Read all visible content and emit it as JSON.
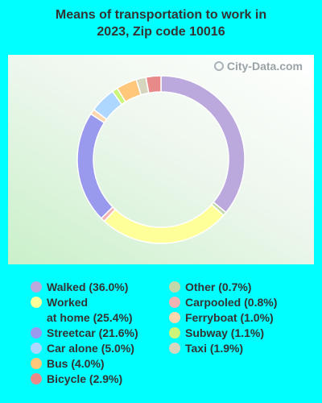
{
  "chart_data": {
    "type": "pie",
    "variant": "donut",
    "title": "Means of transportation to work in 2023, Zip code 10016",
    "slices": [
      {
        "label": "Walked (36.0%)",
        "value": 36.0,
        "color": "#BBA8DC"
      },
      {
        "label": "Other (0.7%)",
        "value": 0.7,
        "color": "#C3D8A8"
      },
      {
        "label": "Worked at home (25.4%)",
        "value": 25.4,
        "color": "#FFFF99"
      },
      {
        "label": "Carpooled (0.8%)",
        "value": 0.8,
        "color": "#F2B3B3"
      },
      {
        "label": "Streetcar (21.6%)",
        "value": 21.6,
        "color": "#9999EE"
      },
      {
        "label": "Ferryboat (1.0%)",
        "value": 1.0,
        "color": "#FFD7AE"
      },
      {
        "label": "Car alone (5.0%)",
        "value": 5.0,
        "color": "#AED7FF"
      },
      {
        "label": "Subway (1.1%)",
        "value": 1.1,
        "color": "#CCF57A"
      },
      {
        "label": "Bus (4.0%)",
        "value": 4.0,
        "color": "#FFC77A"
      },
      {
        "label": "Taxi (1.9%)",
        "value": 1.9,
        "color": "#D6D6BF"
      },
      {
        "label": "Bicycle (2.9%)",
        "value": 2.9,
        "color": "#E88A8A"
      }
    ],
    "legend": {
      "placement": "bottom",
      "left": [
        {
          "label": "Walked (36.0%)",
          "color": "#BBA8DC"
        },
        {
          "label": "Worked\nat home (25.4%)",
          "color": "#FFFF99"
        },
        {
          "label": "Streetcar (21.6%)",
          "color": "#9999EE"
        },
        {
          "label": "Car alone (5.0%)",
          "color": "#AED7FF"
        },
        {
          "label": "Bus (4.0%)",
          "color": "#FFC77A"
        },
        {
          "label": "Bicycle (2.9%)",
          "color": "#E88A8A"
        }
      ],
      "right": [
        {
          "label": "Other (0.7%)",
          "color": "#C3D8A8"
        },
        {
          "label": "Carpooled (0.8%)",
          "color": "#F2B3B3"
        },
        {
          "label": "Ferryboat (1.0%)",
          "color": "#FFD7AE"
        },
        {
          "label": "Subway (1.1%)",
          "color": "#CCF57A"
        },
        {
          "label": "Taxi (1.9%)",
          "color": "#D6D6BF"
        }
      ]
    }
  },
  "title_line1": "Means of transportation to work in",
  "title_line2": "2023, Zip code 10016",
  "watermark": "City-Data.com",
  "background_color": "#00FFFF"
}
